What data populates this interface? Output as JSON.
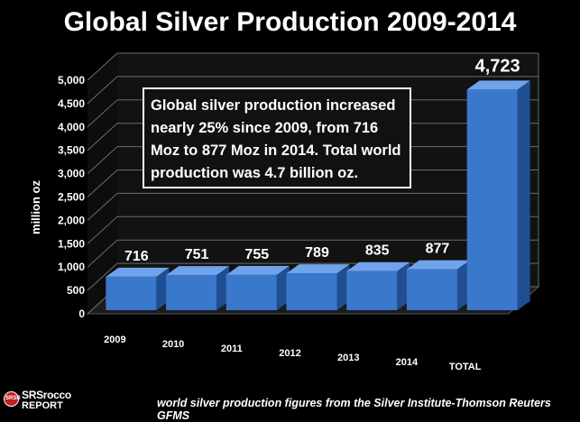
{
  "title": "Global Silver Production 2009-2014",
  "callout": "Global silver production increased nearly 25% since 2009, from 716 Moz to 877 Moz in 2014.  Total world production was 4.7 billion oz.",
  "source": "world silver production figures from the Silver Institute-Thomson Reuters GFMS",
  "logo": {
    "top": "SRSrocco",
    "bottom": "REPORT",
    "badge": "SRSR"
  },
  "colors": {
    "bar_front": "#3a78cc",
    "bar_top": "#6fa3ec",
    "bar_side": "#1f4f92",
    "background": "#000000",
    "wall": "#121212",
    "grid": "#6b6b6b"
  },
  "chart_data": {
    "type": "bar",
    "categories": [
      "2009",
      "2010",
      "2011",
      "2012",
      "2013",
      "2014",
      "TOTAL"
    ],
    "values": [
      716,
      751,
      755,
      789,
      835,
      877,
      4723
    ],
    "data_labels": [
      "716",
      "751",
      "755",
      "789",
      "835",
      "877",
      "4,723"
    ],
    "ylabel": "million oz",
    "xlabel": "",
    "ylim": [
      0,
      5000
    ],
    "yticks": [
      "0",
      "500",
      "1,000",
      "1,500",
      "2,000",
      "2,500",
      "3,000",
      "3,500",
      "4,000",
      "4,500",
      "5,000"
    ],
    "grid": true,
    "style": "3d"
  }
}
